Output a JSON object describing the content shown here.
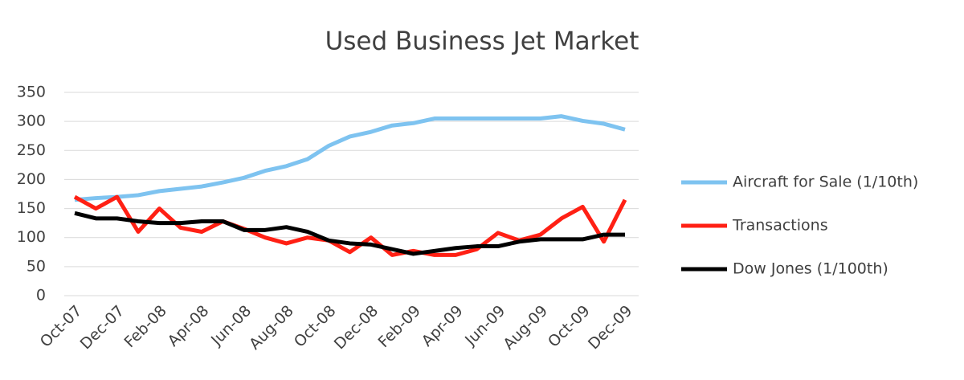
{
  "chart_data": {
    "type": "line",
    "title": "Used Business Jet Market",
    "categories": [
      "Oct-07",
      null,
      "Dec-07",
      null,
      "Feb-08",
      null,
      "Apr-08",
      null,
      "Jun-08",
      null,
      "Aug-08",
      null,
      "Oct-08",
      null,
      "Dec-08",
      null,
      "Feb-09",
      null,
      "Apr-09",
      null,
      "Jun-09",
      null,
      "Aug-09",
      null,
      "Oct-09",
      null,
      "Dec-09"
    ],
    "series": [
      {
        "name": "Aircraft for Sale (1/10th)",
        "color": "#7ec3f0",
        "values": [
          165,
          168,
          170,
          173,
          180,
          184,
          188,
          195,
          203,
          215,
          223,
          235,
          258,
          274,
          282,
          293,
          297,
          305,
          305,
          305,
          305,
          305,
          305,
          309,
          301,
          296,
          286
        ]
      },
      {
        "name": "Transactions",
        "color": "#ff2014",
        "values": [
          170,
          150,
          170,
          110,
          150,
          117,
          110,
          128,
          115,
          100,
          90,
          100,
          95,
          75,
          100,
          70,
          77,
          70,
          70,
          80,
          108,
          95,
          105,
          133,
          153,
          93,
          165
        ]
      },
      {
        "name": "Dow Jones (1/100th)",
        "color": "#000000",
        "values": [
          142,
          133,
          133,
          128,
          125,
          125,
          128,
          128,
          113,
          113,
          118,
          110,
          95,
          90,
          88,
          80,
          72,
          77,
          82,
          85,
          85,
          93,
          97,
          97,
          97,
          105,
          105
        ]
      }
    ],
    "ylim": [
      0,
      350
    ],
    "yticks": [
      0,
      50,
      100,
      150,
      200,
      250,
      300,
      350
    ],
    "grid": true,
    "legend": "right"
  }
}
